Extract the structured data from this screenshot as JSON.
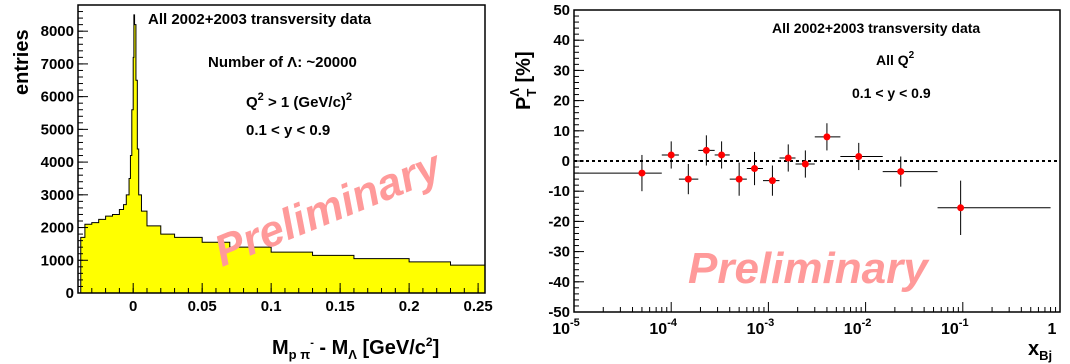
{
  "chart_data": [
    {
      "type": "histogram",
      "ylabel": "entries",
      "xlabel": {
        "main": "M",
        "sub1": "p π",
        "sup1": "-",
        "mid": " - M",
        "sub2": "Λ",
        "tail": " [GeV/c",
        "sup2": "2",
        "end": "]"
      },
      "xlim": [
        -0.04,
        0.255
      ],
      "ylim": [
        0,
        8800
      ],
      "x_ticks": [
        {
          "v": 0,
          "label": "0"
        },
        {
          "v": 0.05,
          "label": "0.05"
        },
        {
          "v": 0.1,
          "label": "0.1"
        },
        {
          "v": 0.15,
          "label": "0.15"
        },
        {
          "v": 0.2,
          "label": "0.2"
        },
        {
          "v": 0.25,
          "label": "0.25"
        }
      ],
      "y_ticks": [
        {
          "v": 0,
          "label": "0"
        },
        {
          "v": 1000,
          "label": "1000"
        },
        {
          "v": 2000,
          "label": "2000"
        },
        {
          "v": 3000,
          "label": "3000"
        },
        {
          "v": 4000,
          "label": "4000"
        },
        {
          "v": 5000,
          "label": "5000"
        },
        {
          "v": 6000,
          "label": "6000"
        },
        {
          "v": 7000,
          "label": "7000"
        },
        {
          "v": 8000,
          "label": "8000"
        }
      ],
      "fill_color": "#ffff00",
      "curve_points": [
        [
          -0.038,
          1700
        ],
        [
          -0.035,
          2100
        ],
        [
          -0.03,
          2150
        ],
        [
          -0.025,
          2250
        ],
        [
          -0.02,
          2350
        ],
        [
          -0.015,
          2400
        ],
        [
          -0.01,
          2550
        ],
        [
          -0.007,
          2700
        ],
        [
          -0.005,
          3000
        ],
        [
          -0.003,
          3500
        ],
        [
          -0.002,
          4200
        ],
        [
          -0.001,
          5600
        ],
        [
          0.0,
          7200
        ],
        [
          0.0005,
          8500
        ],
        [
          0.001,
          8200
        ],
        [
          0.002,
          6500
        ],
        [
          0.003,
          4400
        ],
        [
          0.004,
          3000
        ],
        [
          0.006,
          2500
        ],
        [
          0.01,
          2050
        ],
        [
          0.02,
          1800
        ],
        [
          0.03,
          1700
        ],
        [
          0.05,
          1550
        ],
        [
          0.07,
          1400
        ],
        [
          0.1,
          1250
        ],
        [
          0.13,
          1150
        ],
        [
          0.16,
          1050
        ],
        [
          0.2,
          950
        ],
        [
          0.23,
          850
        ],
        [
          0.255,
          750
        ]
      ],
      "annotations": {
        "line1": "All 2002+2003 transversity data",
        "line2_pre": "Number of ",
        "line2_sym": "Λ",
        "line2_post": ": ~20000",
        "line3_pre": "Q",
        "line3_sup": "2",
        "line3_post": " > 1 (GeV/c)",
        "line3_sup2": "2",
        "line4": "0.1 < y < 0.9"
      },
      "watermark": "Preliminary"
    },
    {
      "type": "scatter",
      "xscale": "log",
      "xlim": [
        1e-05,
        1
      ],
      "ylim": [
        -50,
        50
      ],
      "ylabel": {
        "main": "P",
        "sub": "T",
        "sup": "Λ",
        "tail": " [%]"
      },
      "xlabel": {
        "main": "x",
        "sub": "Bj"
      },
      "x_ticks": [
        {
          "v": 1e-05,
          "base": "10",
          "exp": "-5"
        },
        {
          "v": 0.0001,
          "base": "10",
          "exp": "-4"
        },
        {
          "v": 0.001,
          "base": "10",
          "exp": "-3"
        },
        {
          "v": 0.01,
          "base": "10",
          "exp": "-2"
        },
        {
          "v": 0.1,
          "base": "10",
          "exp": "-1"
        },
        {
          "v": 1,
          "base": "1",
          "exp": ""
        }
      ],
      "y_ticks": [
        {
          "v": -50,
          "label": "-50"
        },
        {
          "v": -40,
          "label": "-40"
        },
        {
          "v": -30,
          "label": "-30"
        },
        {
          "v": -20,
          "label": "-20"
        },
        {
          "v": -10,
          "label": "-10"
        },
        {
          "v": 0,
          "label": "0"
        },
        {
          "v": 10,
          "label": "10"
        },
        {
          "v": 20,
          "label": "20"
        },
        {
          "v": 30,
          "label": "30"
        },
        {
          "v": 40,
          "label": "40"
        },
        {
          "v": 50,
          "label": "50"
        }
      ],
      "marker_color": "#ff0000",
      "zero_line": "dotted",
      "points": [
        {
          "x": 5e-05,
          "y": -4,
          "xlo": 1e-05,
          "xhi": 8e-05,
          "err": 6
        },
        {
          "x": 0.0001,
          "y": 2,
          "xlo": 8e-05,
          "xhi": 0.00012,
          "err": 4.5
        },
        {
          "x": 0.00015,
          "y": -6,
          "xlo": 0.00012,
          "xhi": 0.00019,
          "err": 5
        },
        {
          "x": 0.00023,
          "y": 3.5,
          "xlo": 0.00019,
          "xhi": 0.00028,
          "err": 5
        },
        {
          "x": 0.00033,
          "y": 2,
          "xlo": 0.00028,
          "xhi": 0.0004,
          "err": 4.5
        },
        {
          "x": 0.0005,
          "y": -6,
          "xlo": 0.0004,
          "xhi": 0.0006,
          "err": 5.5
        },
        {
          "x": 0.00072,
          "y": -2.5,
          "xlo": 0.0006,
          "xhi": 0.00088,
          "err": 5.5
        },
        {
          "x": 0.0011,
          "y": -6.5,
          "xlo": 0.00088,
          "xhi": 0.0013,
          "err": 5
        },
        {
          "x": 0.0016,
          "y": 1,
          "xlo": 0.0013,
          "xhi": 0.0019,
          "err": 4.5
        },
        {
          "x": 0.0024,
          "y": -1,
          "xlo": 0.0019,
          "xhi": 0.003,
          "err": 4.5
        },
        {
          "x": 0.004,
          "y": 8,
          "xlo": 0.003,
          "xhi": 0.0055,
          "err": 4.5
        },
        {
          "x": 0.0085,
          "y": 1.5,
          "xlo": 0.0055,
          "xhi": 0.015,
          "err": 4.5
        },
        {
          "x": 0.023,
          "y": -3.5,
          "xlo": 0.015,
          "xhi": 0.055,
          "err": 5
        },
        {
          "x": 0.095,
          "y": -15.5,
          "xlo": 0.055,
          "xhi": 0.8,
          "err": 9
        }
      ],
      "annotations": {
        "line1": "All 2002+2003 transversity data",
        "line2_pre": "All Q",
        "line2_sup": "2",
        "line3": "0.1 < y < 0.9"
      },
      "watermark": "Preliminary"
    }
  ]
}
